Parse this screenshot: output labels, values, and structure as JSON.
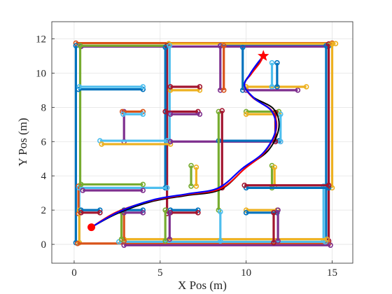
{
  "chart_data": {
    "type": "line",
    "title": "",
    "xlabel": "X Pos (m)",
    "ylabel": "Y Pos (m)",
    "xlim": [
      -1.3,
      16.2
    ],
    "ylim": [
      -1.1,
      13
    ],
    "xticks": [
      0,
      5,
      10,
      15
    ],
    "yticks": [
      0,
      2,
      4,
      6,
      8,
      10,
      12
    ],
    "grid": true,
    "legend": "none",
    "colors": {
      "blue": "#0072BD",
      "orange": "#D95319",
      "yellow": "#EDB120",
      "purple": "#7E2F8E",
      "green": "#77AC30",
      "cyan": "#4DBEEE",
      "maroon": "#A2142F",
      "path": "#0000FF",
      "reference": "#000000",
      "planned": "#FF0000"
    },
    "wall_segments": [
      {
        "color": "orange",
        "x": [
          0.1,
          15.0
        ],
        "y": [
          11.75,
          11.75
        ]
      },
      {
        "color": "yellow",
        "x": [
          5.5,
          15.2
        ],
        "y": [
          11.72,
          11.72
        ]
      },
      {
        "color": "blue",
        "x": [
          8.5,
          14.8
        ],
        "y": [
          11.58,
          11.58
        ]
      },
      {
        "color": "purple",
        "x": [
          0.4,
          14.7
        ],
        "y": [
          11.55,
          11.55
        ]
      },
      {
        "color": "green",
        "x": [
          0.35,
          5.4
        ],
        "y": [
          11.6,
          11.6
        ]
      },
      {
        "color": "blue",
        "x": [
          0.1,
          0.1
        ],
        "y": [
          0.1,
          11.6
        ]
      },
      {
        "color": "green",
        "x": [
          0.35,
          0.35
        ],
        "y": [
          3.3,
          11.6
        ]
      },
      {
        "color": "cyan",
        "x": [
          0.3,
          0.3
        ],
        "y": [
          0.1,
          3.3
        ]
      },
      {
        "color": "orange",
        "x": [
          0.25,
          0.25
        ],
        "y": [
          1.8,
          3.4
        ]
      },
      {
        "color": "yellow",
        "x": [
          0.3,
          0.3
        ],
        "y": [
          0.1,
          2.0
        ]
      },
      {
        "color": "blue",
        "x": [
          14.65,
          14.65
        ],
        "y": [
          0.1,
          11.6
        ]
      },
      {
        "color": "maroon",
        "x": [
          14.8,
          14.8
        ],
        "y": [
          0.2,
          11.7
        ]
      },
      {
        "color": "yellow",
        "x": [
          15.0,
          15.0
        ],
        "y": [
          3.3,
          11.7
        ]
      },
      {
        "color": "cyan",
        "x": [
          14.5,
          14.5
        ],
        "y": [
          0.2,
          3.4
        ]
      },
      {
        "color": "orange",
        "x": [
          0.2,
          14.8
        ],
        "y": [
          0.05,
          0.05
        ]
      },
      {
        "color": "purple",
        "x": [
          2.9,
          14.9
        ],
        "y": [
          -0.05,
          -0.05
        ]
      },
      {
        "color": "cyan",
        "x": [
          2.6,
          14.6
        ],
        "y": [
          0.15,
          0.15
        ]
      },
      {
        "color": "yellow",
        "x": [
          2.9,
          14.7
        ],
        "y": [
          0.3,
          0.3
        ]
      },
      {
        "color": "blue",
        "x": [
          0.25,
          4.0
        ],
        "y": [
          9.05,
          9.05
        ]
      },
      {
        "color": "cyan",
        "x": [
          0.3,
          4.0
        ],
        "y": [
          9.2,
          9.2
        ]
      },
      {
        "color": "maroon",
        "x": [
          5.4,
          5.4
        ],
        "y": [
          1.8,
          11.6
        ]
      },
      {
        "color": "blue",
        "x": [
          5.3,
          5.3
        ],
        "y": [
          3.3,
          11.5
        ]
      },
      {
        "color": "cyan",
        "x": [
          5.55,
          5.55
        ],
        "y": [
          6.0,
          11.6
        ]
      },
      {
        "color": "yellow",
        "x": [
          5.6,
          7.3
        ],
        "y": [
          9.0,
          9.0
        ]
      },
      {
        "color": "maroon",
        "x": [
          5.6,
          7.3
        ],
        "y": [
          9.2,
          9.2
        ]
      },
      {
        "color": "purple",
        "x": [
          8.5,
          8.5
        ],
        "y": [
          9.0,
          11.6
        ]
      },
      {
        "color": "orange",
        "x": [
          8.7,
          8.7
        ],
        "y": [
          9.0,
          11.6
        ]
      },
      {
        "color": "purple",
        "x": [
          2.9,
          2.9
        ],
        "y": [
          6.0,
          7.75
        ]
      },
      {
        "color": "orange",
        "x": [
          2.8,
          4.0
        ],
        "y": [
          7.75,
          7.75
        ]
      },
      {
        "color": "cyan",
        "x": [
          2.85,
          4.0
        ],
        "y": [
          7.6,
          7.6
        ]
      },
      {
        "color": "maroon",
        "x": [
          5.3,
          7.2
        ],
        "y": [
          7.75,
          7.75
        ]
      },
      {
        "color": "purple",
        "x": [
          5.6,
          7.3
        ],
        "y": [
          7.6,
          7.6
        ]
      },
      {
        "color": "cyan",
        "x": [
          1.5,
          5.4
        ],
        "y": [
          6.05,
          6.05
        ]
      },
      {
        "color": "yellow",
        "x": [
          1.6,
          5.6
        ],
        "y": [
          5.85,
          5.85
        ]
      },
      {
        "color": "purple",
        "x": [
          5.6,
          12.0
        ],
        "y": [
          6.0,
          6.0
        ]
      },
      {
        "color": "blue",
        "x": [
          8.4,
          11.9
        ],
        "y": [
          6.05,
          6.05
        ]
      },
      {
        "color": "green",
        "x": [
          8.4,
          8.4
        ],
        "y": [
          2.0,
          7.75
        ]
      },
      {
        "color": "maroon",
        "x": [
          8.6,
          8.6
        ],
        "y": [
          3.3,
          7.8
        ]
      },
      {
        "color": "cyan",
        "x": [
          8.5,
          8.5
        ],
        "y": [
          0.2,
          1.9
        ]
      },
      {
        "color": "green",
        "x": [
          10.0,
          11.9
        ],
        "y": [
          7.75,
          7.75
        ]
      },
      {
        "color": "yellow",
        "x": [
          10.0,
          11.9
        ],
        "y": [
          7.6,
          7.6
        ]
      },
      {
        "color": "cyan",
        "x": [
          12.0,
          12.0
        ],
        "y": [
          6.0,
          7.6
        ]
      },
      {
        "color": "maroon",
        "x": [
          11.7,
          11.7
        ],
        "y": [
          6.0,
          7.7
        ]
      },
      {
        "color": "blue",
        "x": [
          9.8,
          9.8
        ],
        "y": [
          9.0,
          11.5
        ]
      },
      {
        "color": "purple",
        "x": [
          10.0,
          13.0
        ],
        "y": [
          9.0,
          9.0
        ]
      },
      {
        "color": "yellow",
        "x": [
          10.0,
          13.5
        ],
        "y": [
          9.2,
          9.2
        ]
      },
      {
        "color": "blue",
        "x": [
          11.8,
          11.8
        ],
        "y": [
          9.2,
          10.6
        ]
      },
      {
        "color": "cyan",
        "x": [
          11.5,
          11.5
        ],
        "y": [
          9.2,
          10.6
        ]
      },
      {
        "color": "green",
        "x": [
          11.5,
          11.5
        ],
        "y": [
          3.3,
          4.6
        ]
      },
      {
        "color": "yellow",
        "x": [
          11.65,
          11.65
        ],
        "y": [
          3.4,
          4.5
        ]
      },
      {
        "color": "blue",
        "x": [
          10.0,
          14.8
        ],
        "y": [
          3.3,
          3.3
        ]
      },
      {
        "color": "maroon",
        "x": [
          9.9,
          14.8
        ],
        "y": [
          3.45,
          3.45
        ]
      },
      {
        "color": "cyan",
        "x": [
          0.3,
          5.4
        ],
        "y": [
          3.3,
          3.3
        ]
      },
      {
        "color": "green",
        "x": [
          0.4,
          4.0
        ],
        "y": [
          3.5,
          3.5
        ]
      },
      {
        "color": "purple",
        "x": [
          0.5,
          4.0
        ],
        "y": [
          3.15,
          3.15
        ]
      },
      {
        "color": "green",
        "x": [
          6.8,
          6.8
        ],
        "y": [
          3.4,
          4.6
        ]
      },
      {
        "color": "yellow",
        "x": [
          7.1,
          7.1
        ],
        "y": [
          3.4,
          4.5
        ]
      },
      {
        "color": "blue",
        "x": [
          5.6,
          7.2
        ],
        "y": [
          2.0,
          2.0
        ]
      },
      {
        "color": "maroon",
        "x": [
          5.6,
          7.2
        ],
        "y": [
          1.85,
          1.85
        ]
      },
      {
        "color": "green",
        "x": [
          5.3,
          5.3
        ],
        "y": [
          0.2,
          2.0
        ]
      },
      {
        "color": "purple",
        "x": [
          5.55,
          5.55
        ],
        "y": [
          0.3,
          1.85
        ]
      },
      {
        "color": "orange",
        "x": [
          2.9,
          2.9
        ],
        "y": [
          0.2,
          2.0
        ]
      },
      {
        "color": "green",
        "x": [
          2.75,
          2.75
        ],
        "y": [
          0.3,
          1.9
        ]
      },
      {
        "color": "blue",
        "x": [
          2.9,
          4.0
        ],
        "y": [
          2.0,
          2.0
        ]
      },
      {
        "color": "purple",
        "x": [
          2.9,
          4.0
        ],
        "y": [
          1.85,
          1.85
        ]
      },
      {
        "color": "blue",
        "x": [
          0.4,
          1.5
        ],
        "y": [
          2.0,
          2.0
        ]
      },
      {
        "color": "maroon",
        "x": [
          0.4,
          1.5
        ],
        "y": [
          1.85,
          1.85
        ]
      },
      {
        "color": "yellow",
        "x": [
          10.0,
          11.8
        ],
        "y": [
          2.0,
          2.0
        ]
      },
      {
        "color": "blue",
        "x": [
          10.0,
          11.8
        ],
        "y": [
          1.85,
          1.85
        ]
      },
      {
        "color": "maroon",
        "x": [
          11.6,
          11.6
        ],
        "y": [
          0.1,
          1.85
        ]
      },
      {
        "color": "purple",
        "x": [
          11.85,
          11.85
        ],
        "y": [
          0.2,
          2.0
        ]
      }
    ],
    "trajectories": [
      {
        "role": "reference",
        "color": "reference",
        "x": [
          1.0,
          2.5,
          4.5,
          6.5,
          8.5,
          10.0,
          11.3,
          11.9,
          11.6,
          10.4,
          9.9,
          10.2,
          10.7,
          11.0
        ],
        "y": [
          1.0,
          1.8,
          2.5,
          2.85,
          3.2,
          4.5,
          5.5,
          6.8,
          7.9,
          8.6,
          9.3,
          9.9,
          10.6,
          11.0
        ]
      },
      {
        "role": "planned",
        "color": "planned",
        "x": [
          1.0,
          2.5,
          4.5,
          6.5,
          8.5,
          9.9,
          11.1,
          11.75,
          11.5,
          10.4,
          9.9,
          10.3,
          10.8,
          11.0
        ],
        "y": [
          1.0,
          1.9,
          2.55,
          2.9,
          3.25,
          4.4,
          5.4,
          6.7,
          7.8,
          8.55,
          9.3,
          9.95,
          10.6,
          11.0
        ]
      },
      {
        "role": "actual",
        "color": "path",
        "x": [
          1.0,
          2.6,
          4.6,
          6.6,
          8.4,
          9.8,
          11.0,
          11.7,
          11.5,
          10.5,
          9.9,
          10.2,
          10.6,
          11.0
        ],
        "y": [
          1.0,
          1.9,
          2.6,
          2.95,
          3.3,
          4.45,
          5.35,
          6.6,
          7.75,
          8.5,
          9.25,
          9.9,
          10.5,
          11.0
        ]
      }
    ],
    "start": {
      "x": 1.0,
      "y": 1.0,
      "color": "planned"
    },
    "goal": {
      "x": 11.0,
      "y": 11.0,
      "color": "planned"
    }
  }
}
